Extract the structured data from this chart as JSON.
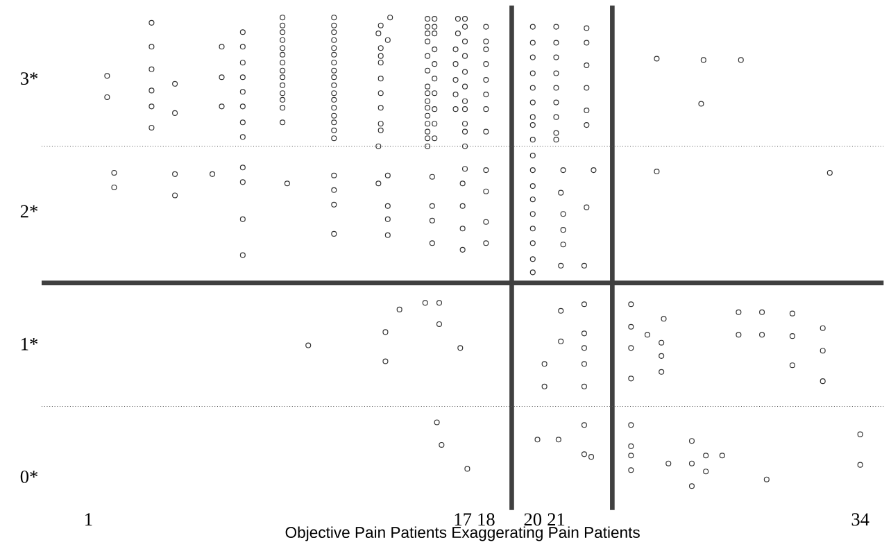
{
  "chart_data": {
    "type": "scatter",
    "xlabel": "Objective Pain Patients Exaggerating Pain Patients",
    "xlim": [
      -1,
      35
    ],
    "ylim": [
      -0.25,
      3.55
    ],
    "xticks": [
      1,
      17,
      18,
      20,
      21,
      34
    ],
    "yticks": [
      {
        "value": 0,
        "label": "0*"
      },
      {
        "value": 1,
        "label": "1*"
      },
      {
        "value": 2,
        "label": "2*"
      },
      {
        "value": 3,
        "label": "3*"
      }
    ],
    "grid": false,
    "marker": "circle",
    "ref_lines": [
      {
        "axis": "y",
        "value": 1.46,
        "color": "#404040",
        "line_style": "solid"
      },
      {
        "axis": "x",
        "value": 19.1,
        "color": "#404040",
        "line_style": "solid"
      },
      {
        "axis": "x",
        "value": 23.4,
        "color": "#404040",
        "line_style": "solid"
      },
      {
        "axis": "y",
        "value": 2.49,
        "color": "#555555",
        "line_style": "dotted"
      },
      {
        "axis": "y",
        "value": 0.53,
        "color": "#555555",
        "line_style": "dotted"
      }
    ],
    "series": [
      {
        "color": "#333333",
        "x": [
          1.8,
          1.8,
          2.1,
          2.1,
          3.7,
          3.7,
          3.7,
          3.7,
          3.7,
          3.7,
          4.7,
          4.7,
          4.7,
          4.7,
          6.3,
          6.7,
          6.7,
          6.7,
          7.6,
          7.6,
          7.6,
          7.6,
          7.6,
          7.6,
          7.6,
          7.6,
          7.6,
          7.6,
          7.6,
          7.6,
          9.3,
          9.3,
          9.3,
          9.3,
          9.3,
          9.3,
          9.3,
          9.3,
          9.3,
          9.3,
          9.3,
          9.3,
          9.3,
          9.3,
          9.5,
          11.5,
          11.5,
          11.5,
          11.5,
          11.5,
          11.5,
          11.5,
          11.5,
          11.5,
          11.5,
          11.5,
          11.5,
          11.5,
          11.5,
          11.5,
          11.5,
          11.5,
          11.5,
          11.5,
          11.5,
          11.5,
          13.9,
          13.5,
          13.4,
          13.8,
          13.5,
          13.5,
          13.5,
          13.5,
          13.5,
          13.5,
          13.5,
          13.5,
          13.4,
          13.8,
          13.4,
          13.8,
          13.8,
          13.8,
          15.8,
          15.8,
          15.8,
          15.8,
          15.8,
          15.8,
          15.8,
          15.8,
          15.8,
          15.8,
          15.5,
          15.5,
          15.5,
          15.5,
          15.5,
          15.5,
          15.5,
          15.5,
          15.5,
          15.5,
          15.5,
          15.5,
          15.5,
          15.5,
          15.5,
          15.7,
          15.7,
          15.7,
          15.7,
          16.8,
          17.1,
          17.1,
          16.8,
          17.1,
          16.7,
          17.1,
          16.7,
          17.1,
          16.7,
          17.1,
          16.7,
          17.1,
          16.7,
          17.1,
          17.1,
          17.1,
          17.1,
          17.1,
          17.0,
          17.0,
          17.0,
          17.0,
          18.0,
          18.0,
          18.0,
          18.0,
          18.0,
          18.0,
          18.0,
          18.0,
          18.0,
          18.0,
          18.0,
          18.0,
          20.0,
          20.0,
          20.0,
          20.0,
          20.0,
          20.0,
          20.0,
          20.0,
          20.0,
          20.0,
          20.0,
          20.0,
          20.0,
          20.0,
          20.0,
          20.0,
          20.0,
          20.0,
          21.0,
          21.0,
          21.0,
          21.0,
          21.0,
          21.0,
          21.0,
          21.0,
          21.0,
          21.3,
          21.2,
          21.3,
          21.3,
          21.3,
          21.2,
          22.3,
          22.3,
          22.3,
          22.3,
          22.3,
          22.3,
          22.6,
          22.3,
          22.2,
          25.3,
          27.3,
          28.9,
          27.2,
          25.3,
          32.7,
          14.3,
          15.4,
          16.0,
          13.7,
          16.0,
          16.9,
          13.7,
          21.2,
          22.2,
          22.2,
          21.2,
          22.2,
          20.5,
          22.2,
          20.5,
          22.2,
          15.9,
          16.1,
          17.2,
          22.2,
          20.2,
          21.1,
          22.2,
          22.5,
          10.4,
          24.2,
          24.2,
          24.9,
          25.6,
          24.2,
          25.5,
          25.5,
          25.5,
          24.2,
          28.8,
          29.8,
          31.1,
          28.8,
          29.8,
          31.1,
          32.4,
          32.4,
          31.1,
          32.4,
          24.2,
          24.2,
          24.2,
          24.2,
          25.8,
          26.8,
          26.8,
          27.4,
          28.1,
          27.4,
          26.8,
          30.0,
          34.0,
          34.0
        ],
        "values": [
          3.02,
          2.86,
          2.29,
          2.18,
          3.42,
          3.24,
          3.07,
          2.91,
          2.79,
          2.63,
          2.96,
          2.74,
          2.28,
          2.12,
          2.28,
          3.24,
          3.01,
          2.79,
          3.35,
          3.24,
          3.12,
          3.01,
          2.9,
          2.79,
          2.67,
          2.56,
          2.33,
          2.22,
          1.94,
          1.67,
          3.46,
          3.4,
          3.35,
          3.29,
          3.23,
          3.18,
          3.12,
          3.06,
          3.01,
          2.95,
          2.89,
          2.84,
          2.78,
          2.67,
          2.21,
          3.46,
          3.4,
          3.35,
          3.29,
          3.23,
          3.18,
          3.12,
          3.06,
          3.01,
          2.95,
          2.89,
          2.84,
          2.78,
          2.72,
          2.67,
          2.61,
          2.55,
          2.27,
          2.16,
          2.05,
          1.83,
          3.46,
          3.4,
          3.34,
          3.29,
          3.23,
          3.17,
          3.12,
          3.0,
          2.89,
          2.78,
          2.66,
          2.61,
          2.49,
          2.27,
          2.21,
          2.04,
          1.94,
          1.82,
          3.45,
          3.39,
          3.34,
          3.22,
          3.11,
          3.0,
          2.89,
          2.77,
          2.66,
          2.55,
          3.45,
          3.39,
          3.34,
          3.28,
          3.17,
          3.06,
          2.94,
          2.89,
          2.83,
          2.78,
          2.72,
          2.66,
          2.6,
          2.55,
          2.49,
          2.26,
          2.04,
          1.93,
          1.76,
          3.45,
          3.45,
          3.39,
          3.34,
          3.28,
          3.22,
          3.17,
          3.11,
          3.05,
          2.99,
          2.94,
          2.88,
          2.83,
          2.77,
          2.77,
          2.66,
          2.6,
          2.49,
          2.32,
          2.21,
          2.04,
          1.87,
          1.71,
          3.39,
          3.28,
          3.22,
          3.11,
          2.99,
          2.88,
          2.77,
          2.6,
          2.31,
          2.15,
          1.92,
          1.76,
          3.39,
          3.27,
          3.16,
          3.04,
          2.93,
          2.82,
          2.71,
          2.65,
          2.54,
          2.42,
          2.31,
          2.19,
          2.09,
          1.98,
          1.87,
          1.76,
          1.64,
          1.54,
          3.39,
          3.27,
          3.16,
          3.04,
          2.93,
          2.82,
          2.71,
          2.59,
          2.54,
          2.31,
          2.14,
          1.98,
          1.86,
          1.75,
          1.59,
          3.38,
          3.27,
          3.1,
          2.93,
          2.76,
          2.65,
          2.31,
          2.03,
          1.59,
          3.15,
          3.14,
          3.14,
          2.81,
          2.3,
          2.29,
          1.26,
          1.31,
          1.31,
          1.09,
          1.15,
          0.97,
          0.87,
          1.25,
          1.3,
          1.08,
          1.02,
          0.97,
          0.85,
          0.85,
          0.68,
          0.68,
          0.41,
          0.24,
          0.06,
          0.39,
          0.28,
          0.28,
          0.17,
          0.15,
          0.99,
          1.3,
          1.13,
          1.07,
          1.19,
          0.97,
          1.01,
          0.91,
          0.79,
          0.74,
          1.24,
          1.24,
          1.23,
          1.07,
          1.07,
          1.06,
          1.12,
          0.95,
          0.84,
          0.72,
          0.39,
          0.23,
          0.16,
          0.05,
          0.1,
          0.27,
          0.1,
          0.16,
          0.16,
          0.04,
          -0.07,
          -0.02,
          0.32,
          0.09
        ]
      }
    ]
  }
}
